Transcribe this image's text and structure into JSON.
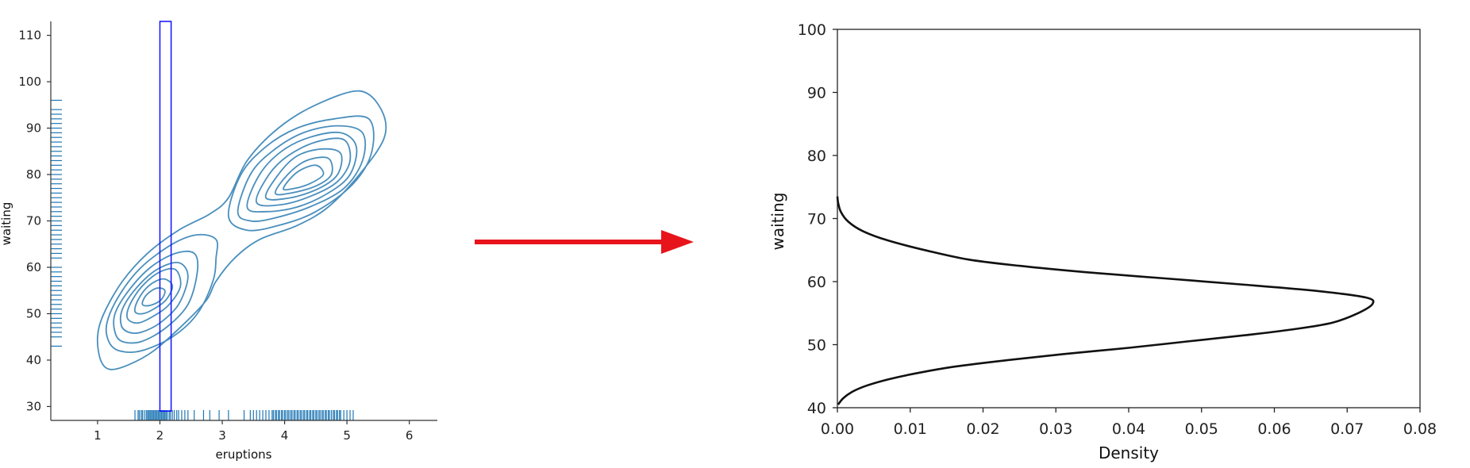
{
  "chart_data": [
    {
      "type": "kde-contour",
      "xlabel": "eruptions",
      "ylabel": "waiting",
      "xlim": [
        0.25,
        6.45
      ],
      "ylim": [
        27,
        113
      ],
      "xticks": [
        1,
        2,
        3,
        4,
        5,
        6
      ],
      "yticks": [
        30,
        40,
        50,
        60,
        70,
        80,
        90,
        100,
        110
      ],
      "grid": false,
      "colors": {
        "contour": "#4a8fbd",
        "rug": "#1f77b4",
        "highlight": "#1010ff"
      },
      "highlight_range": {
        "x": [
          2.0,
          2.18
        ],
        "y": [
          29,
          113
        ]
      },
      "rug_x": [
        1.6,
        1.65,
        1.67,
        1.7,
        1.72,
        1.75,
        1.78,
        1.8,
        1.82,
        1.83,
        1.85,
        1.87,
        1.88,
        1.9,
        1.92,
        1.93,
        1.95,
        1.97,
        1.98,
        2.0,
        2.02,
        2.03,
        2.05,
        2.07,
        2.08,
        2.1,
        2.12,
        2.15,
        2.17,
        2.2,
        2.23,
        2.27,
        2.3,
        2.35,
        2.4,
        2.45,
        2.55,
        2.7,
        2.8,
        2.95,
        3.1,
        3.35,
        3.45,
        3.5,
        3.55,
        3.6,
        3.65,
        3.7,
        3.75,
        3.8,
        3.82,
        3.85,
        3.87,
        3.9,
        3.92,
        3.95,
        3.97,
        4.0,
        4.02,
        4.05,
        4.07,
        4.1,
        4.12,
        4.15,
        4.17,
        4.2,
        4.22,
        4.25,
        4.27,
        4.3,
        4.32,
        4.35,
        4.37,
        4.4,
        4.42,
        4.45,
        4.47,
        4.5,
        4.52,
        4.55,
        4.57,
        4.6,
        4.62,
        4.65,
        4.67,
        4.7,
        4.72,
        4.75,
        4.78,
        4.8,
        4.83,
        4.85,
        4.88,
        4.9,
        4.95,
        5.0,
        5.05,
        5.1
      ],
      "rug_y": [
        43,
        45,
        46,
        47,
        48,
        49,
        50,
        51,
        52,
        53,
        54,
        55,
        56,
        57,
        58,
        59,
        60,
        62,
        63,
        64,
        65,
        66,
        67,
        68,
        69,
        70,
        71,
        72,
        73,
        74,
        75,
        76,
        77,
        78,
        79,
        80,
        81,
        82,
        83,
        84,
        85,
        86,
        87,
        88,
        89,
        90,
        91,
        92,
        93,
        94,
        96
      ],
      "contours": [
        {
          "level": 1,
          "points": [
            [
              1.05,
              40
            ],
            [
              1.0,
              45
            ],
            [
              1.1,
              50
            ],
            [
              1.4,
              57
            ],
            [
              1.8,
              63
            ],
            [
              2.3,
              68
            ],
            [
              2.8,
              71.5
            ],
            [
              3.1,
              75
            ],
            [
              3.4,
              83
            ],
            [
              3.9,
              90
            ],
            [
              4.5,
              95
            ],
            [
              5.2,
              98
            ],
            [
              5.55,
              94
            ],
            [
              5.6,
              88
            ],
            [
              5.2,
              80
            ],
            [
              4.7,
              73
            ],
            [
              4.2,
              69
            ],
            [
              3.6,
              66
            ],
            [
              3.2,
              62
            ],
            [
              2.9,
              57
            ],
            [
              2.75,
              53
            ],
            [
              2.4,
              48
            ],
            [
              1.9,
              42
            ],
            [
              1.5,
              39
            ],
            [
              1.2,
              38
            ]
          ]
        },
        {
          "level": 2,
          "points": [
            [
              1.18,
              44
            ],
            [
              1.15,
              48
            ],
            [
              1.35,
              54
            ],
            [
              1.7,
              60
            ],
            [
              2.2,
              65
            ],
            [
              2.6,
              67
            ],
            [
              2.9,
              66
            ],
            [
              2.9,
              62
            ],
            [
              2.85,
              57
            ],
            [
              2.6,
              50
            ],
            [
              2.2,
              45
            ],
            [
              1.7,
              42
            ],
            [
              1.35,
              42
            ]
          ]
        },
        {
          "level": 3,
          "points": [
            [
              1.28,
              46
            ],
            [
              1.28,
              50
            ],
            [
              1.5,
              55
            ],
            [
              1.85,
              60
            ],
            [
              2.25,
              63
            ],
            [
              2.55,
              63
            ],
            [
              2.6,
              59
            ],
            [
              2.45,
              52
            ],
            [
              2.1,
              47
            ],
            [
              1.7,
              44
            ],
            [
              1.4,
              44
            ]
          ]
        },
        {
          "level": 4,
          "points": [
            [
              1.38,
              47.5
            ],
            [
              1.4,
              51
            ],
            [
              1.62,
              55.5
            ],
            [
              1.95,
              59.5
            ],
            [
              2.3,
              61
            ],
            [
              2.45,
              58
            ],
            [
              2.3,
              52
            ],
            [
              2.0,
              48
            ],
            [
              1.7,
              46
            ],
            [
              1.5,
              46
            ]
          ]
        },
        {
          "level": 5,
          "points": [
            [
              1.48,
              49
            ],
            [
              1.52,
              52
            ],
            [
              1.72,
              56
            ],
            [
              2.0,
              59
            ],
            [
              2.25,
              59.5
            ],
            [
              2.33,
              56
            ],
            [
              2.15,
              52
            ],
            [
              1.9,
              49.5
            ],
            [
              1.65,
              48
            ]
          ]
        },
        {
          "level": 6,
          "points": [
            [
              1.6,
              50.5
            ],
            [
              1.65,
              53
            ],
            [
              1.82,
              56
            ],
            [
              2.05,
              57.5
            ],
            [
              2.2,
              56
            ],
            [
              2.1,
              53
            ],
            [
              1.9,
              51
            ],
            [
              1.72,
              50
            ]
          ]
        },
        {
          "level": 7,
          "points": [
            [
              1.72,
              52
            ],
            [
              1.78,
              54
            ],
            [
              1.95,
              55.5
            ],
            [
              2.08,
              55
            ],
            [
              2.02,
              53
            ],
            [
              1.85,
              51.8
            ]
          ]
        },
        {
          "level": 8,
          "points": [
            [
              3.1,
              71
            ],
            [
              3.3,
              80
            ],
            [
              3.7,
              86
            ],
            [
              4.2,
              90
            ],
            [
              4.8,
              92
            ],
            [
              5.35,
              92
            ],
            [
              5.4,
              85
            ],
            [
              5.1,
              78
            ],
            [
              4.5,
              72
            ],
            [
              3.9,
              69
            ],
            [
              3.4,
              68
            ]
          ]
        },
        {
          "level": 9,
          "points": [
            [
              3.25,
              72
            ],
            [
              3.45,
              80
            ],
            [
              3.8,
              85
            ],
            [
              4.3,
              89
            ],
            [
              4.85,
              90.5
            ],
            [
              5.25,
              89
            ],
            [
              5.25,
              83
            ],
            [
              4.95,
              77
            ],
            [
              4.4,
              73
            ],
            [
              3.8,
              70.5
            ],
            [
              3.45,
              70
            ]
          ]
        },
        {
          "level": 10,
          "points": [
            [
              3.4,
              73
            ],
            [
              3.6,
              80
            ],
            [
              3.95,
              85
            ],
            [
              4.4,
              88
            ],
            [
              4.9,
              89
            ],
            [
              5.15,
              86
            ],
            [
              5.05,
              80
            ],
            [
              4.7,
              76
            ],
            [
              4.2,
              73
            ],
            [
              3.7,
              72
            ]
          ]
        },
        {
          "level": 11,
          "points": [
            [
              3.55,
              74
            ],
            [
              3.75,
              80
            ],
            [
              4.05,
              84
            ],
            [
              4.5,
              87
            ],
            [
              4.95,
              87.5
            ],
            [
              5.05,
              83
            ],
            [
              4.85,
              78.5
            ],
            [
              4.45,
              75.5
            ],
            [
              3.95,
              73.5
            ]
          ]
        },
        {
          "level": 12,
          "points": [
            [
              3.7,
              75
            ],
            [
              3.9,
              80
            ],
            [
              4.2,
              84
            ],
            [
              4.6,
              85.5
            ],
            [
              4.9,
              84.5
            ],
            [
              4.85,
              80
            ],
            [
              4.55,
              77
            ],
            [
              4.1,
              75
            ]
          ]
        },
        {
          "level": 13,
          "points": [
            [
              3.85,
              76
            ],
            [
              4.05,
              80
            ],
            [
              4.35,
              83
            ],
            [
              4.7,
              83.5
            ],
            [
              4.75,
              80
            ],
            [
              4.5,
              77.5
            ],
            [
              4.1,
              76
            ]
          ]
        },
        {
          "level": 14,
          "points": [
            [
              3.98,
              77
            ],
            [
              4.2,
              80.5
            ],
            [
              4.5,
              82
            ],
            [
              4.62,
              80
            ],
            [
              4.4,
              78
            ],
            [
              4.15,
              77
            ]
          ]
        }
      ]
    },
    {
      "type": "line",
      "xlabel": "Density",
      "ylabel": "waiting",
      "xlim": [
        0.0,
        0.08
      ],
      "ylim": [
        40,
        100
      ],
      "xticks": [
        "0.00",
        "0.01",
        "0.02",
        "0.03",
        "0.04",
        "0.05",
        "0.06",
        "0.07",
        "0.08"
      ],
      "yticks": [
        40,
        50,
        60,
        70,
        80,
        90,
        100
      ],
      "grid": false,
      "colors": {
        "line": "#111111"
      },
      "series": [
        {
          "points": [
            [
              0.0001,
              40.5
            ],
            [
              0.0008,
              41.5
            ],
            [
              0.002,
              42.5
            ],
            [
              0.004,
              43.5
            ],
            [
              0.007,
              44.5
            ],
            [
              0.011,
              45.5
            ],
            [
              0.016,
              46.5
            ],
            [
              0.023,
              47.5
            ],
            [
              0.031,
              48.5
            ],
            [
              0.04,
              49.5
            ],
            [
              0.048,
              50.5
            ],
            [
              0.056,
              51.5
            ],
            [
              0.063,
              52.5
            ],
            [
              0.068,
              53.5
            ],
            [
              0.0715,
              55
            ],
            [
              0.0735,
              56.5
            ],
            [
              0.0725,
              57.5
            ],
            [
              0.066,
              58.5
            ],
            [
              0.056,
              59.5
            ],
            [
              0.045,
              60.5
            ],
            [
              0.034,
              61.5
            ],
            [
              0.025,
              62.5
            ],
            [
              0.018,
              63.5
            ],
            [
              0.012,
              65
            ],
            [
              0.007,
              66.5
            ],
            [
              0.0035,
              68
            ],
            [
              0.0015,
              69.5
            ],
            [
              0.0005,
              71
            ],
            [
              0.0001,
              72.5
            ],
            [
              0.0,
              73.5
            ]
          ]
        }
      ]
    }
  ],
  "arrow": {
    "color": "#e8141c"
  }
}
